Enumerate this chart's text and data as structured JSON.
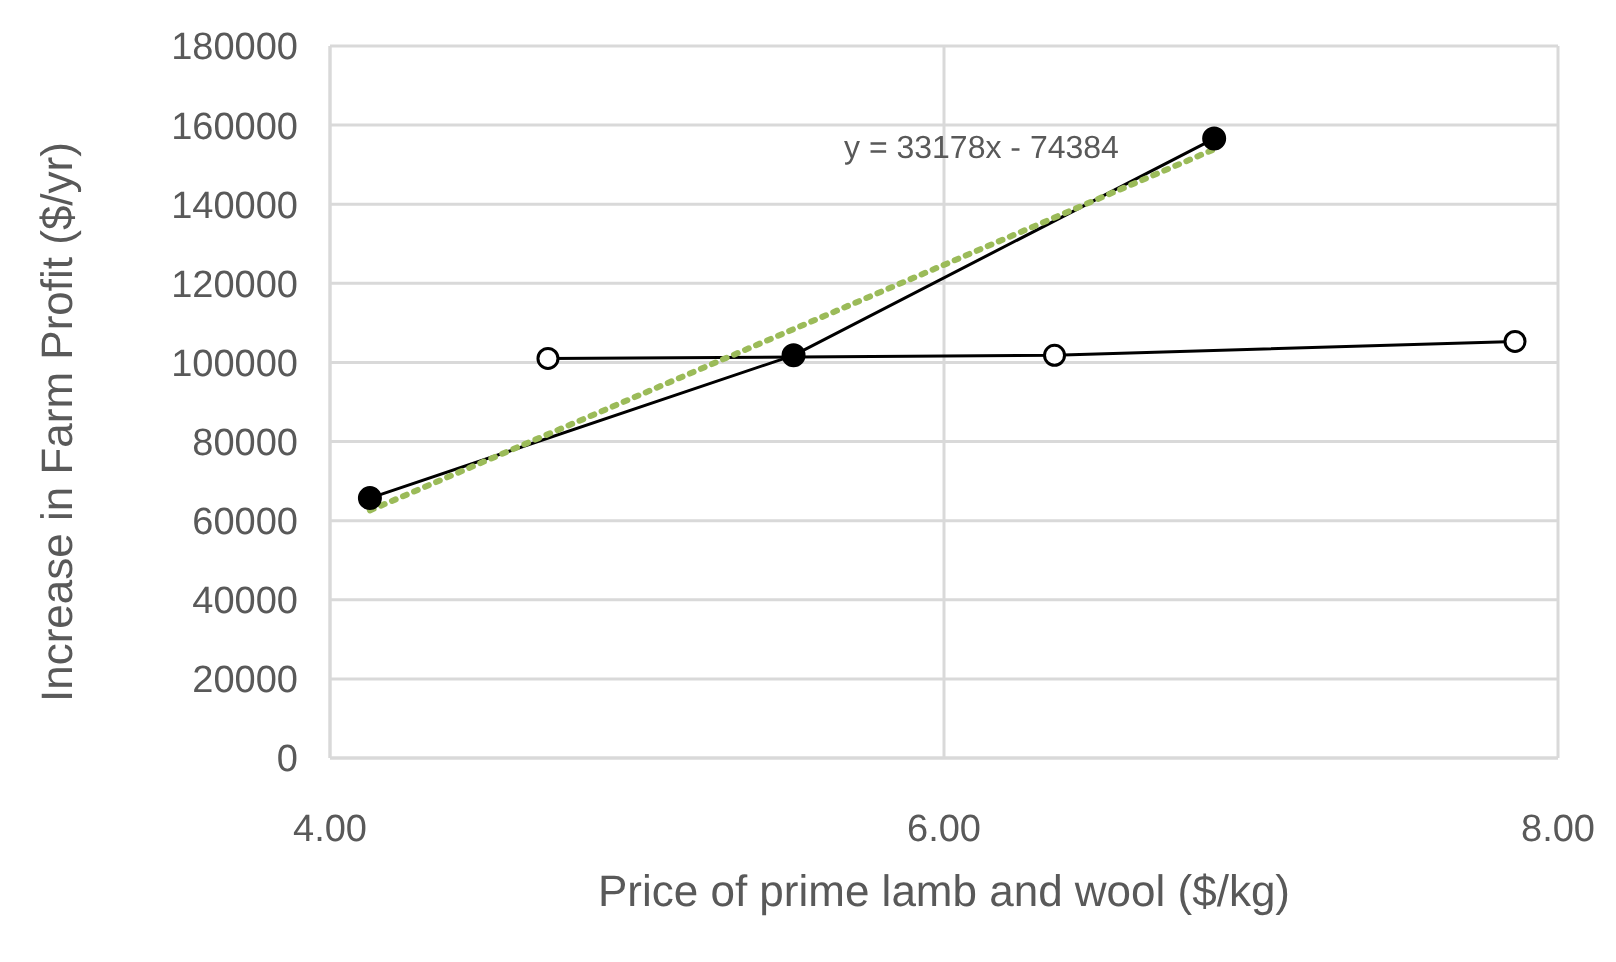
{
  "chart_data": {
    "type": "line",
    "xlabel": "Price of prime lamb and wool ($/kg)",
    "ylabel": "Increase in Farm Profit ($/yr)",
    "xlim": [
      4,
      8
    ],
    "xticks": [
      {
        "value": 4,
        "label": "4.00"
      },
      {
        "value": 6,
        "label": "6.00"
      },
      {
        "value": 8,
        "label": "8.00"
      }
    ],
    "ylim": [
      0,
      180000
    ],
    "yticks": [
      0,
      20000,
      40000,
      60000,
      80000,
      100000,
      120000,
      140000,
      160000,
      180000
    ],
    "grid": true,
    "legend": false,
    "marker": "circle",
    "series": [
      {
        "color": "#000000",
        "x": [
          4.13,
          5.51,
          6.88
        ],
        "values": [
          65700,
          101800,
          156600
        ]
      },
      {
        "color": "#000000",
        "x": [
          4.71,
          6.36,
          7.86
        ],
        "values": [
          101000,
          101800,
          105300
        ]
      },
      {
        "type": "line",
        "color": "#9bbb59",
        "line_style": "dotted",
        "marker": "none",
        "x": [
          4.13,
          6.88
        ],
        "values": [
          62600,
          153900
        ]
      }
    ],
    "annotations": [
      "y = 33178x - 74384"
    ]
  }
}
